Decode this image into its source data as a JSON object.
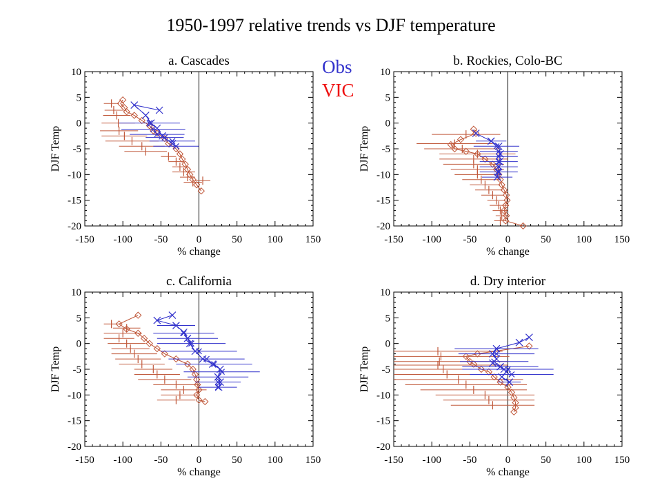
{
  "title": "1950-1997 relative trends vs DJF temperature",
  "legend": [
    {
      "label": "Obs",
      "color": "#3333cc"
    },
    {
      "label": "VIC",
      "color": "#ee1111"
    }
  ],
  "colors": {
    "obs": "#3333cc",
    "vic": "#c0583a",
    "vic_legend": "#ee1111",
    "axis": "#000000"
  },
  "chart_data": [
    {
      "type": "scatter",
      "title": "a. Cascades",
      "xlabel": "% change",
      "ylabel": "DJF Temp",
      "xlim": [
        -150,
        150
      ],
      "ylim": [
        -20,
        10
      ],
      "xticks": [
        -150,
        -100,
        -50,
        0,
        50,
        100,
        150
      ],
      "yticks": [
        10,
        5,
        0,
        -5,
        -10,
        -15,
        -20
      ],
      "series": [
        {
          "name": "VIC",
          "line": [
            [
              -100,
              4.5
            ],
            [
              -103,
              3.8
            ],
            [
              -98,
              3
            ],
            [
              -95,
              2.2
            ],
            [
              -85,
              1.5
            ],
            [
              -75,
              0.5
            ],
            [
              -65,
              -0.5
            ],
            [
              -60,
              -1.5
            ],
            [
              -55,
              -2
            ],
            [
              -45,
              -3
            ],
            [
              -40,
              -4
            ],
            [
              -30,
              -5
            ],
            [
              -25,
              -6
            ],
            [
              -22,
              -7
            ],
            [
              -18,
              -8
            ],
            [
              -15,
              -9
            ],
            [
              -12,
              -10
            ],
            [
              -8,
              -11
            ],
            [
              -3,
              -12
            ],
            [
              3,
              -13.2
            ]
          ],
          "crosses": [
            [
              -115,
              3.8,
              10
            ],
            [
              -112,
              2.5,
              12
            ],
            [
              -108,
              1.5,
              18
            ],
            [
              -106,
              0,
              22
            ],
            [
              -105,
              -1.5,
              25
            ],
            [
              -98,
              -2.5,
              30
            ],
            [
              -88,
              -3.5,
              35
            ],
            [
              -75,
              -4.5,
              30
            ],
            [
              -70,
              -5.5,
              28
            ],
            [
              -40,
              -6.5,
              10
            ],
            [
              -30,
              -7.5,
              10
            ],
            [
              -25,
              -8.5,
              10
            ],
            [
              -20,
              -9.5,
              15
            ],
            [
              -15,
              -10.5,
              10
            ],
            [
              -8,
              -11.5,
              12
            ],
            [
              5,
              -11.2,
              10
            ]
          ]
        },
        {
          "name": "Obs",
          "line": [
            [
              -52,
              2.5
            ],
            [
              -85,
              3.5
            ],
            [
              -70,
              1.5
            ],
            [
              -63,
              0
            ],
            [
              -55,
              -1
            ],
            [
              -48,
              -2.5
            ],
            [
              -35,
              -4
            ]
          ],
          "crosses": [
            [
              -65,
              0,
              40
            ],
            [
              -60,
              -1.2,
              42
            ],
            [
              -55,
              -2.2,
              36
            ],
            [
              -45,
              -2.8,
              25
            ],
            [
              -35,
              -3.5,
              30
            ],
            [
              -30,
              -4.5,
              30
            ]
          ]
        }
      ]
    },
    {
      "type": "scatter",
      "title": "b. Rockies, Colo-BC",
      "xlabel": "% change",
      "ylabel": "DJF Temp",
      "xlim": [
        -150,
        150
      ],
      "ylim": [
        -20,
        10
      ],
      "xticks": [
        -150,
        -100,
        -50,
        0,
        50,
        100,
        150
      ],
      "yticks": [
        10,
        5,
        0,
        -5,
        -10,
        -15,
        -20
      ],
      "series": [
        {
          "name": "VIC",
          "line": [
            [
              -45,
              -1.2
            ],
            [
              -42,
              -2
            ],
            [
              -62,
              -3.2
            ],
            [
              -75,
              -4.2
            ],
            [
              -70,
              -5
            ],
            [
              -55,
              -5.5
            ],
            [
              -40,
              -6
            ],
            [
              -30,
              -7
            ],
            [
              -20,
              -8
            ],
            [
              -15,
              -9
            ],
            [
              -12,
              -10
            ],
            [
              -10,
              -11
            ],
            [
              -8,
              -12
            ],
            [
              -5,
              -13
            ],
            [
              -2,
              -14
            ],
            [
              -1,
              -15
            ],
            [
              -3,
              -16
            ],
            [
              -5,
              -17
            ],
            [
              -2,
              -18
            ],
            [
              -3,
              -19
            ],
            [
              20,
              -20
            ]
          ],
          "crosses": [
            [
              -55,
              -2.2,
              45
            ],
            [
              -70,
              -4,
              50
            ],
            [
              -60,
              -5,
              50
            ],
            [
              -40,
              -6,
              50
            ],
            [
              -45,
              -7,
              45
            ],
            [
              -45,
              -8,
              40
            ],
            [
              -40,
              -9,
              35
            ],
            [
              -40,
              -10,
              30
            ],
            [
              -35,
              -11,
              25
            ],
            [
              -30,
              -12,
              20
            ],
            [
              -25,
              -13,
              18
            ],
            [
              -20,
              -14,
              15
            ],
            [
              -15,
              -15,
              12
            ],
            [
              -12,
              -16,
              12
            ],
            [
              -10,
              -17,
              10
            ],
            [
              -8,
              -18,
              8
            ],
            [
              -10,
              -19,
              8
            ]
          ]
        },
        {
          "name": "Obs",
          "line": [
            [
              -42,
              -2
            ],
            [
              -22,
              -3.5
            ],
            [
              -12,
              -4.5
            ],
            [
              -10,
              -6
            ],
            [
              -11,
              -7.5
            ],
            [
              -12,
              -8.5
            ],
            [
              -13,
              -9.5
            ],
            [
              -14,
              -10.5
            ]
          ],
          "crosses": [
            [
              -22,
              -3.5,
              20
            ],
            [
              -15,
              -4.5,
              30
            ],
            [
              -12,
              -5.5,
              25
            ],
            [
              -12,
              -6.5,
              25
            ],
            [
              -12,
              -7.5,
              25
            ],
            [
              -12,
              -8.5,
              25
            ],
            [
              -12,
              -9.5,
              25
            ],
            [
              -14,
              -10.5,
              20
            ]
          ]
        }
      ]
    },
    {
      "type": "scatter",
      "title": "c.  California",
      "xlabel": "% change",
      "ylabel": "DJF Temp",
      "xlim": [
        -150,
        150
      ],
      "ylim": [
        -20,
        10
      ],
      "xticks": [
        -150,
        -100,
        -50,
        0,
        50,
        100,
        150
      ],
      "yticks": [
        10,
        5,
        0,
        -5,
        -10,
        -15,
        -20
      ],
      "series": [
        {
          "name": "VIC",
          "line": [
            [
              -80,
              5.5
            ],
            [
              -105,
              3.8
            ],
            [
              -95,
              2.8
            ],
            [
              -80,
              2
            ],
            [
              -72,
              1
            ],
            [
              -65,
              0
            ],
            [
              -55,
              -1
            ],
            [
              -45,
              -2
            ],
            [
              -30,
              -3
            ],
            [
              -15,
              -4
            ],
            [
              -8,
              -5
            ],
            [
              -5,
              -6
            ],
            [
              -3,
              -7
            ],
            [
              -2,
              -8
            ],
            [
              0,
              -9
            ],
            [
              -3,
              -10
            ],
            [
              0,
              -11
            ],
            [
              8,
              -11.3
            ]
          ],
          "crosses": [
            [
              -115,
              3.8,
              10
            ],
            [
              -95,
              3,
              18
            ],
            [
              -100,
              2,
              25
            ],
            [
              -105,
              1,
              20
            ],
            [
              -95,
              0,
              25
            ],
            [
              -90,
              -1,
              25
            ],
            [
              -85,
              -2,
              30
            ],
            [
              -80,
              -3,
              30
            ],
            [
              -75,
              -4,
              30
            ],
            [
              -60,
              -5,
              25
            ],
            [
              -55,
              -6,
              30
            ],
            [
              -45,
              -7,
              35
            ],
            [
              -30,
              -8,
              30
            ],
            [
              -20,
              -9,
              30
            ],
            [
              -25,
              -10,
              25
            ],
            [
              -30,
              -11,
              25
            ]
          ]
        },
        {
          "name": "Obs",
          "line": [
            [
              -35,
              5.5
            ],
            [
              -55,
              4.5
            ],
            [
              -30,
              3.5
            ],
            [
              -20,
              2.2
            ],
            [
              -15,
              1
            ],
            [
              -12,
              0
            ],
            [
              -5,
              -1.5
            ],
            [
              5,
              -3
            ],
            [
              18,
              -4
            ],
            [
              28,
              -5
            ],
            [
              25,
              -6.5
            ],
            [
              28,
              -7.5
            ],
            [
              26,
              -8.5
            ]
          ],
          "crosses": [
            [
              -30,
              3.5,
              25
            ],
            [
              -20,
              2,
              40
            ],
            [
              -15,
              1,
              40
            ],
            [
              -10,
              0,
              45
            ],
            [
              0,
              -1.5,
              50
            ],
            [
              10,
              -3,
              50
            ],
            [
              20,
              -4,
              50
            ],
            [
              30,
              -5.5,
              50
            ],
            [
              25,
              -6.5,
              40
            ],
            [
              25,
              -7.5,
              30
            ],
            [
              25,
              -8.5,
              25
            ]
          ]
        }
      ]
    },
    {
      "type": "scatter",
      "title": "d. Dry interior",
      "xlabel": "% change",
      "ylabel": "DJF Temp",
      "xlim": [
        -150,
        150
      ],
      "ylim": [
        -20,
        10
      ],
      "xticks": [
        -150,
        -100,
        -50,
        0,
        50,
        100,
        150
      ],
      "yticks": [
        10,
        5,
        0,
        -5,
        -10,
        -15,
        -20
      ],
      "series": [
        {
          "name": "VIC",
          "line": [
            [
              28,
              -0.5
            ],
            [
              -40,
              -2
            ],
            [
              -55,
              -2.5
            ],
            [
              -50,
              -3.5
            ],
            [
              -45,
              -4
            ],
            [
              -35,
              -5
            ],
            [
              -25,
              -5.5
            ],
            [
              -18,
              -6.5
            ],
            [
              -10,
              -7.5
            ],
            [
              0,
              -8.5
            ],
            [
              5,
              -9.5
            ],
            [
              8,
              -10.5
            ],
            [
              10,
              -11.5
            ],
            [
              10,
              -12.5
            ],
            [
              8,
              -13.3
            ]
          ],
          "crosses": [
            [
              -92,
              -1.5,
              85
            ],
            [
              -88,
              -2.5,
              90
            ],
            [
              -90,
              -3.5,
              90
            ],
            [
              -92,
              -4.2,
              92
            ],
            [
              -85,
              -5,
              95
            ],
            [
              -80,
              -6,
              90
            ],
            [
              -65,
              -7,
              85
            ],
            [
              -55,
              -8,
              80
            ],
            [
              -45,
              -9,
              70
            ],
            [
              -30,
              -10,
              65
            ],
            [
              -25,
              -11,
              60
            ],
            [
              -20,
              -12,
              55
            ]
          ]
        },
        {
          "name": "Obs",
          "line": [
            [
              28,
              1.2
            ],
            [
              15,
              0.2
            ],
            [
              -15,
              -1
            ],
            [
              -20,
              -2
            ],
            [
              -15,
              -3
            ],
            [
              -20,
              -3.8
            ],
            [
              -10,
              -4.5
            ],
            [
              -5,
              -5
            ],
            [
              -2,
              -5.5
            ],
            [
              -8,
              -6.5
            ],
            [
              2,
              -7.5
            ]
          ],
          "crosses": [
            [
              -15,
              -1,
              55
            ],
            [
              -15,
              -2,
              50
            ],
            [
              -18,
              -3.5,
              45
            ],
            [
              -10,
              -4.5,
              50
            ],
            [
              0,
              -5,
              60
            ],
            [
              5,
              -6,
              55
            ],
            [
              2,
              -7.5,
              15
            ]
          ]
        }
      ]
    }
  ]
}
